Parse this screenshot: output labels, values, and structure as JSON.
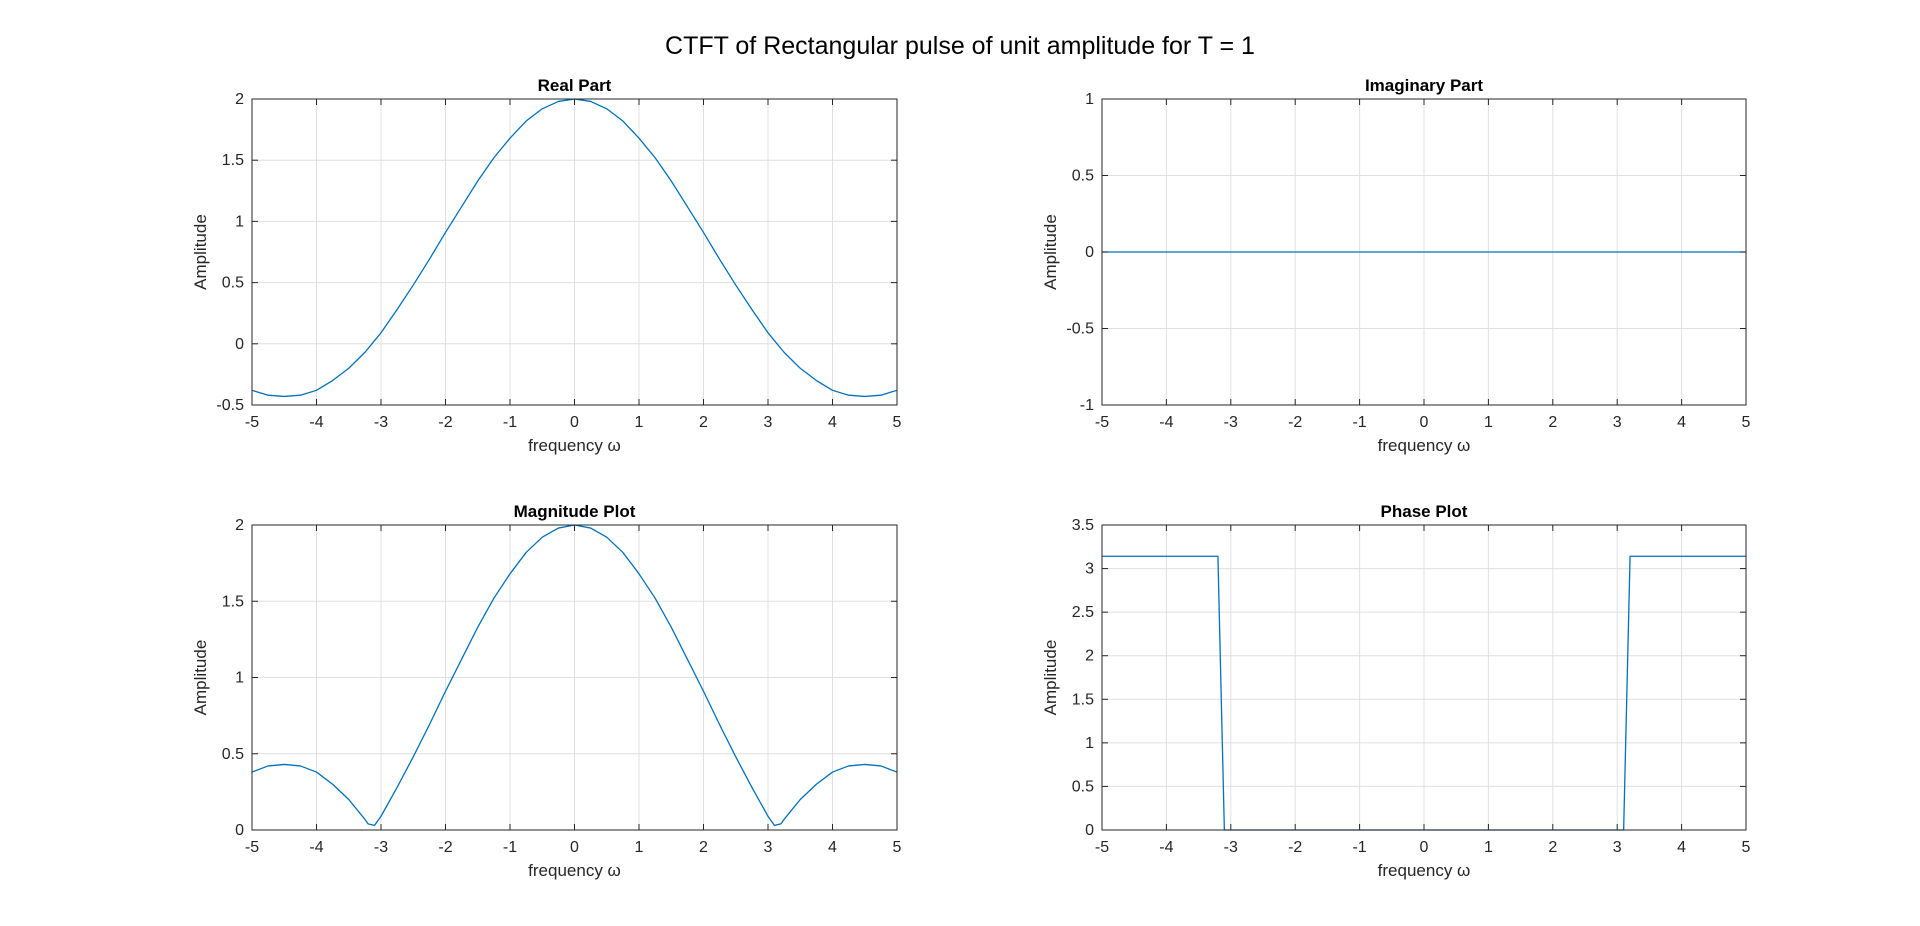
{
  "figure": {
    "title": "CTFT of Rectangular pulse of unit amplitude for T = 1",
    "line_color": "#0072BD",
    "grid_color": "#E0E0E0",
    "axes_color": "#262626"
  },
  "chart_data": [
    {
      "type": "line",
      "title": "Real Part",
      "xlabel": "frequency ω",
      "ylabel": "Amplitude",
      "xlim": [
        -5,
        5
      ],
      "ylim": [
        -0.5,
        2
      ],
      "xticks": [
        "-5",
        "-4",
        "-3",
        "-2",
        "-1",
        "0",
        "1",
        "2",
        "3",
        "4",
        "5"
      ],
      "yticks": [
        "-0.5",
        "0",
        "0.5",
        "1",
        "1.5",
        "2"
      ],
      "grid": true,
      "series": [
        {
          "x": [
            -5,
            -4.75,
            -4.5,
            -4.25,
            -4,
            -3.75,
            -3.5,
            -3.25,
            -3,
            -2.75,
            -2.5,
            -2.25,
            -2,
            -1.75,
            -1.5,
            -1.25,
            -1,
            -0.75,
            -0.5,
            -0.25,
            0,
            0.25,
            0.5,
            0.75,
            1,
            1.25,
            1.5,
            1.75,
            2,
            2.25,
            2.5,
            2.75,
            3,
            3.25,
            3.5,
            3.75,
            4,
            4.25,
            4.5,
            4.75,
            5
          ],
          "y": [
            -0.38,
            -0.42,
            -0.43,
            -0.42,
            -0.38,
            -0.3,
            -0.2,
            -0.07,
            0.09,
            0.28,
            0.48,
            0.69,
            0.91,
            1.12,
            1.33,
            1.52,
            1.68,
            1.82,
            1.92,
            1.98,
            2.0,
            1.98,
            1.92,
            1.82,
            1.68,
            1.52,
            1.33,
            1.12,
            0.91,
            0.69,
            0.48,
            0.28,
            0.09,
            -0.07,
            -0.2,
            -0.3,
            -0.38,
            -0.42,
            -0.43,
            -0.42,
            -0.38
          ]
        }
      ]
    },
    {
      "type": "line",
      "title": "Imaginary Part",
      "xlabel": "frequency ω",
      "ylabel": "Amplitude",
      "xlim": [
        -5,
        5
      ],
      "ylim": [
        -1,
        1
      ],
      "xticks": [
        "-5",
        "-4",
        "-3",
        "-2",
        "-1",
        "0",
        "1",
        "2",
        "3",
        "4",
        "5"
      ],
      "yticks": [
        "-1",
        "-0.5",
        "0",
        "0.5",
        "1"
      ],
      "grid": true,
      "series": [
        {
          "x": [
            -5,
            5
          ],
          "y": [
            0,
            0
          ]
        }
      ]
    },
    {
      "type": "line",
      "title": "Magnitude Plot",
      "xlabel": "frequency ω",
      "ylabel": "Amplitude",
      "xlim": [
        -5,
        5
      ],
      "ylim": [
        0,
        2
      ],
      "xticks": [
        "-5",
        "-4",
        "-3",
        "-2",
        "-1",
        "0",
        "1",
        "2",
        "3",
        "4",
        "5"
      ],
      "yticks": [
        "0",
        "0.5",
        "1",
        "1.5",
        "2"
      ],
      "grid": true,
      "series": [
        {
          "x": [
            -5,
            -4.75,
            -4.5,
            -4.25,
            -4,
            -3.75,
            -3.5,
            -3.25,
            -3.2,
            -3.1,
            -3.0,
            -2.75,
            -2.5,
            -2.25,
            -2,
            -1.75,
            -1.5,
            -1.25,
            -1,
            -0.75,
            -0.5,
            -0.25,
            0,
            0.25,
            0.5,
            0.75,
            1,
            1.25,
            1.5,
            1.75,
            2,
            2.25,
            2.5,
            2.75,
            3.0,
            3.1,
            3.2,
            3.25,
            3.5,
            3.75,
            4,
            4.25,
            4.5,
            4.75,
            5
          ],
          "y": [
            0.38,
            0.42,
            0.43,
            0.42,
            0.38,
            0.3,
            0.2,
            0.07,
            0.04,
            0.03,
            0.09,
            0.28,
            0.48,
            0.69,
            0.91,
            1.12,
            1.33,
            1.52,
            1.68,
            1.82,
            1.92,
            1.98,
            2.0,
            1.98,
            1.92,
            1.82,
            1.68,
            1.52,
            1.33,
            1.12,
            0.91,
            0.69,
            0.48,
            0.28,
            0.09,
            0.03,
            0.04,
            0.07,
            0.2,
            0.3,
            0.38,
            0.42,
            0.43,
            0.42,
            0.38
          ]
        }
      ]
    },
    {
      "type": "line",
      "title": "Phase Plot",
      "xlabel": "frequency ω",
      "ylabel": "Amplitude",
      "xlim": [
        -5,
        5
      ],
      "ylim": [
        0,
        3.5
      ],
      "xticks": [
        "-5",
        "-4",
        "-3",
        "-2",
        "-1",
        "0",
        "1",
        "2",
        "3",
        "4",
        "5"
      ],
      "yticks": [
        "0",
        "0.5",
        "1",
        "1.5",
        "2",
        "2.5",
        "3",
        "3.5"
      ],
      "grid": true,
      "series": [
        {
          "x": [
            -5,
            -3.2,
            -3.1,
            3.1,
            3.2,
            5
          ],
          "y": [
            3.1416,
            3.1416,
            0,
            0,
            3.1416,
            3.1416
          ]
        }
      ]
    }
  ]
}
